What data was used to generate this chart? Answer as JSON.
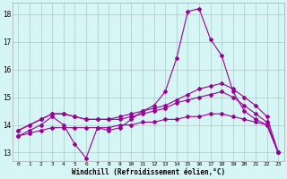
{
  "xlabel": "Windchill (Refroidissement éolien,°C)",
  "bg_color": "#d6f5f5",
  "grid_color": "#b0c8c8",
  "line_color": "#990099",
  "xlim": [
    -0.5,
    23.5
  ],
  "ylim": [
    12.7,
    18.4
  ],
  "yticks": [
    13,
    14,
    15,
    16,
    17,
    18
  ],
  "xticks": [
    0,
    1,
    2,
    3,
    4,
    5,
    6,
    7,
    8,
    9,
    10,
    11,
    12,
    13,
    14,
    15,
    16,
    17,
    18,
    19,
    20,
    21,
    22,
    23
  ],
  "line_spike": [
    13.6,
    13.8,
    14.0,
    14.3,
    14.0,
    13.3,
    12.8,
    13.9,
    13.8,
    13.9,
    14.2,
    14.5,
    14.7,
    15.2,
    16.4,
    18.1,
    18.2,
    17.1,
    16.5,
    15.2,
    14.5,
    14.2,
    14.0,
    13.0
  ],
  "line_upper": [
    13.8,
    14.0,
    14.2,
    14.4,
    14.4,
    14.3,
    14.2,
    14.2,
    14.2,
    14.3,
    14.4,
    14.5,
    14.6,
    14.7,
    14.9,
    15.1,
    15.3,
    15.4,
    15.5,
    15.3,
    15.0,
    14.7,
    14.3,
    13.0
  ],
  "line_mid": [
    13.8,
    14.0,
    14.2,
    14.4,
    14.4,
    14.3,
    14.2,
    14.2,
    14.2,
    14.2,
    14.3,
    14.4,
    14.5,
    14.6,
    14.8,
    14.9,
    15.0,
    15.1,
    15.2,
    15.0,
    14.7,
    14.4,
    14.1,
    13.0
  ],
  "line_flat": [
    13.6,
    13.7,
    13.8,
    13.9,
    13.9,
    13.9,
    13.9,
    13.9,
    13.9,
    14.0,
    14.0,
    14.1,
    14.1,
    14.2,
    14.2,
    14.3,
    14.3,
    14.4,
    14.4,
    14.3,
    14.2,
    14.1,
    14.0,
    13.0
  ]
}
